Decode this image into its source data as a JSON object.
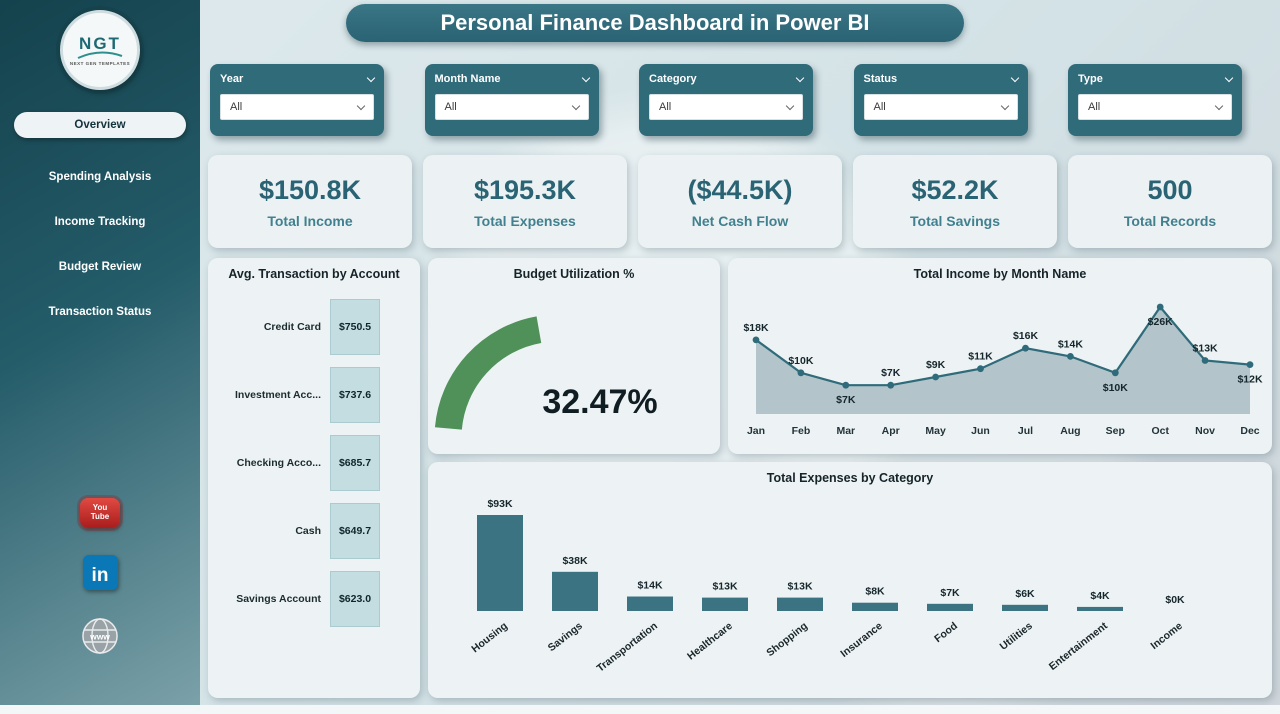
{
  "title": "Personal Finance Dashboard in Power BI",
  "sidebar": {
    "logo": {
      "text": "NGT",
      "subtext": "NEXT GEN TEMPLATES"
    },
    "items": [
      {
        "label": "Overview",
        "active": true
      },
      {
        "label": "Spending Analysis",
        "active": false
      },
      {
        "label": "Income Tracking",
        "active": false
      },
      {
        "label": "Budget Review",
        "active": false
      },
      {
        "label": "Transaction Status",
        "active": false
      }
    ],
    "social": [
      {
        "name": "youtube",
        "line1": "You",
        "line2": "Tube"
      },
      {
        "name": "linkedin",
        "label": "in"
      },
      {
        "name": "website",
        "label": "www"
      }
    ]
  },
  "filters": [
    {
      "label": "Year",
      "value": "All"
    },
    {
      "label": "Month Name",
      "value": "All"
    },
    {
      "label": "Category",
      "value": "All"
    },
    {
      "label": "Status",
      "value": "All"
    },
    {
      "label": "Type",
      "value": "All"
    }
  ],
  "kpis": [
    {
      "value": "$150.8K",
      "label": "Total Income"
    },
    {
      "value": "$195.3K",
      "label": "Total Expenses"
    },
    {
      "value": "($44.5K)",
      "label": "Net Cash Flow"
    },
    {
      "value": "$52.2K",
      "label": "Total Savings"
    },
    {
      "value": "500",
      "label": "Total Records"
    }
  ],
  "colors": {
    "teal_dark": "#2f6b7a",
    "kpi_value": "#2a6374",
    "gauge_green": "#4f9159",
    "bar_teal": "#3c7383",
    "area_fill": "#b3c5cb",
    "line": "#2f6b7a",
    "block_fill": "#c3dde0"
  },
  "chart_data": [
    {
      "type": "bar",
      "orientation": "horizontal",
      "title": "Avg. Transaction by Account",
      "categories": [
        "Credit Card",
        "Investment Acc...",
        "Checking Acco...",
        "Cash",
        "Savings Account"
      ],
      "values": [
        750.5,
        737.6,
        685.7,
        649.7,
        623.0
      ],
      "labels": [
        "$750.5",
        "$737.6",
        "$685.7",
        "$649.7",
        "$623.0"
      ]
    },
    {
      "type": "gauge",
      "title": "Budget Utilization %",
      "value": 32.47,
      "label": "32.47%"
    },
    {
      "type": "area",
      "title": "Total Income by Month Name",
      "categories": [
        "Jan",
        "Feb",
        "Mar",
        "Apr",
        "May",
        "Jun",
        "Jul",
        "Aug",
        "Sep",
        "Oct",
        "Nov",
        "Dec"
      ],
      "values": [
        18,
        10,
        7,
        7,
        9,
        11,
        16,
        14,
        10,
        26,
        13,
        12
      ],
      "labels": [
        "$18K",
        "$10K",
        "$7K",
        "$7K",
        "$9K",
        "$11K",
        "$16K",
        "$14K",
        "$10K",
        "$26K",
        "$13K",
        "$12K"
      ],
      "label_below": [
        2,
        8,
        9,
        11
      ],
      "ylim": [
        0,
        26
      ],
      "legend": "off",
      "grid": "off"
    },
    {
      "type": "bar",
      "title": "Total Expenses by Category",
      "categories": [
        "Housing",
        "Savings",
        "Transportation",
        "Healthcare",
        "Shopping",
        "Insurance",
        "Food",
        "Utilities",
        "Entertainment",
        "Income"
      ],
      "values": [
        93,
        38,
        14,
        13,
        13,
        8,
        7,
        6,
        4,
        0
      ],
      "labels": [
        "$93K",
        "$38K",
        "$14K",
        "$13K",
        "$13K",
        "$8K",
        "$7K",
        "$6K",
        "$4K",
        "$0K"
      ],
      "ylim": [
        0,
        93
      ],
      "legend": "off",
      "grid": "off"
    }
  ]
}
